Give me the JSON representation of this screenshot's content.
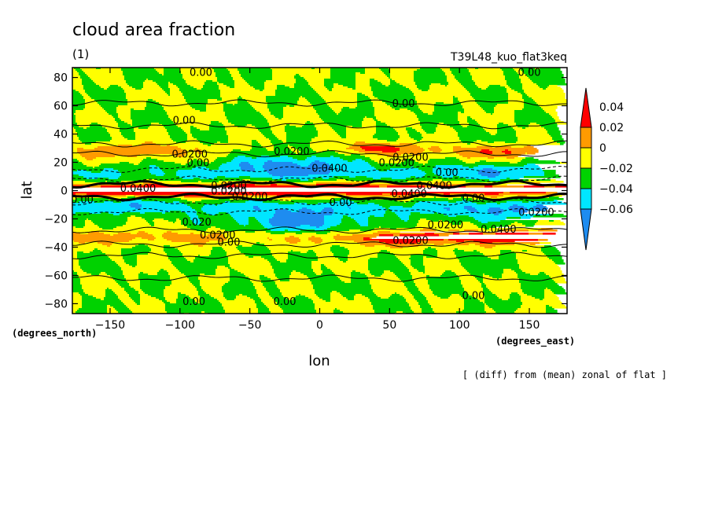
{
  "chart_data": {
    "type": "heatmap",
    "title": "cloud area fraction",
    "subtitle": "(1)",
    "experiment_label": "T39L48_kuo_flat3keq",
    "xlabel": "lon",
    "ylabel": "lat",
    "x_units": "(degrees_east)",
    "y_units": "(degrees_north)",
    "footnote": "[ (diff) from (mean) zonal of flat ]",
    "xlim": [
      -177,
      177
    ],
    "ylim": [
      -87,
      87
    ],
    "x_ticks": [
      -150,
      -100,
      -50,
      0,
      50,
      100,
      150
    ],
    "y_ticks": [
      -80,
      -60,
      -40,
      -20,
      0,
      20,
      40,
      60,
      80
    ],
    "x_tick_labels": [
      "−150",
      "−100",
      "−50",
      "0",
      "50",
      "100",
      "150"
    ],
    "y_tick_labels": [
      "−80",
      "−60",
      "−40",
      "−20",
      "0",
      "20",
      "40",
      "60",
      "80"
    ],
    "colorbar": {
      "boundaries": [
        -0.06,
        -0.04,
        -0.02,
        0,
        0.02,
        0.04
      ],
      "tick_labels": [
        "−0.06",
        "−0.04",
        "−0.02",
        "0",
        "0.02",
        "0.04"
      ],
      "colors": [
        "#1e8cf0",
        "#00e6ff",
        "#00d200",
        "#ffff00",
        "#ff9b00",
        "#ff0000"
      ],
      "extend": "both"
    },
    "contour_labels": [
      {
        "text": "0.00",
        "lon": -85,
        "lat": 84
      },
      {
        "text": "0.00",
        "lon": 150,
        "lat": 84
      },
      {
        "text": "0.00",
        "lon": 60,
        "lat": 62
      },
      {
        "text": "0.00",
        "lon": -97,
        "lat": 50
      },
      {
        "text": "0.0200",
        "lon": -93,
        "lat": 26
      },
      {
        "text": "0.00",
        "lon": -87,
        "lat": 20
      },
      {
        "text": "0.0200",
        "lon": -20,
        "lat": 28
      },
      {
        "text": "0.0400",
        "lon": 7,
        "lat": 16
      },
      {
        "text": "0.0200",
        "lon": 65,
        "lat": 24
      },
      {
        "text": "0.0200",
        "lon": 55,
        "lat": 20
      },
      {
        "text": "0.00",
        "lon": 91,
        "lat": 13
      },
      {
        "text": "0.0400",
        "lon": -130,
        "lat": 2
      },
      {
        "text": "0.0200",
        "lon": -65,
        "lat": 4
      },
      {
        "text": "0.0200",
        "lon": -65,
        "lat": 0
      },
      {
        "text": "0.0200",
        "lon": -50,
        "lat": -4
      },
      {
        "text": "0.0400",
        "lon": 64,
        "lat": -2
      },
      {
        "text": "0.0400",
        "lon": 82,
        "lat": 4
      },
      {
        "text": "0.00",
        "lon": 110,
        "lat": -5
      },
      {
        "text": "0.0200",
        "lon": 155,
        "lat": -15
      },
      {
        "text": "0.00",
        "lon": -170,
        "lat": -6
      },
      {
        "text": "0.00",
        "lon": 15,
        "lat": -8
      },
      {
        "text": "0.0200",
        "lon": 90,
        "lat": -24
      },
      {
        "text": "0.0400",
        "lon": 128,
        "lat": -27
      },
      {
        "text": "0.020",
        "lon": -88,
        "lat": -22
      },
      {
        "text": "0.0200",
        "lon": -73,
        "lat": -31
      },
      {
        "text": "0.0200",
        "lon": 65,
        "lat": -35
      },
      {
        "text": "0.00",
        "lon": -65,
        "lat": -36
      },
      {
        "text": "0.00",
        "lon": -90,
        "lat": -78
      },
      {
        "text": "0.00",
        "lon": -25,
        "lat": -78
      },
      {
        "text": "0.00",
        "lon": 110,
        "lat": -74
      }
    ]
  }
}
